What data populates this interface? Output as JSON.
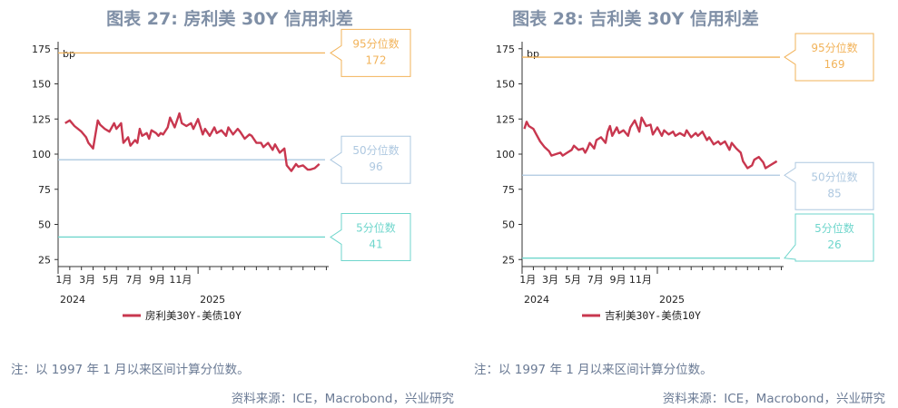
{
  "colors": {
    "series": "#c8374f",
    "p95": "#f2b35a",
    "p50": "#aec8e0",
    "p5": "#6fd6cc",
    "title": "#7f8fa6"
  },
  "chart_data": [
    {
      "type": "line",
      "title": "图表 27: 房利美 30Y 信用利差",
      "unit_label": "bp",
      "ylim": [
        20,
        180
      ],
      "yticks": [
        "175",
        "150",
        "125",
        "100",
        "75",
        "50",
        "25"
      ],
      "yticks_values": [
        175,
        150,
        125,
        100,
        75,
        50,
        25
      ],
      "xlim": [
        0,
        23.2
      ],
      "xticks": [
        {
          "month": 1,
          "label": "1月"
        },
        {
          "month": 3,
          "label": "3月"
        },
        {
          "month": 5,
          "label": "5月"
        },
        {
          "month": 7,
          "label": "7月"
        },
        {
          "month": 9,
          "label": "9月"
        },
        {
          "month": 11,
          "label": "11月"
        }
      ],
      "years": [
        "2024",
        "2025"
      ],
      "series": [
        {
          "name": "房利美30Y-美债10Y",
          "x": [
            0.6,
            1.0,
            1.4,
            2.0,
            2.4,
            2.6,
            2.8,
            3.0,
            3.4,
            3.6,
            4.0,
            4.4,
            4.6,
            4.8,
            5.0,
            5.4,
            5.6,
            6.0,
            6.2,
            6.6,
            6.8,
            7.0,
            7.2,
            7.6,
            7.8,
            8.0,
            8.4,
            8.6,
            8.8,
            9.0,
            9.4,
            9.6,
            10.0,
            10.4,
            10.6,
            11.0,
            11.4,
            11.6,
            12.0,
            12.4,
            12.6,
            13.0,
            13.4,
            13.6,
            14.0,
            14.4,
            14.6,
            15.0,
            15.4,
            15.6,
            16.0,
            16.4,
            16.6,
            17.0,
            17.4,
            17.6,
            18.0,
            18.4,
            18.6,
            19.0,
            19.4,
            19.6,
            20.0,
            20.4,
            20.6,
            21.0,
            21.4,
            21.6,
            22.0,
            22.4
          ],
          "values": [
            122,
            124,
            120,
            116,
            112,
            108,
            106,
            104,
            124,
            121,
            118,
            116,
            119,
            122,
            118,
            122,
            108,
            112,
            106,
            110,
            108,
            118,
            113,
            115,
            111,
            117,
            115,
            113,
            115,
            114,
            119,
            126,
            119,
            129,
            122,
            120,
            122,
            118,
            125,
            114,
            118,
            113,
            119,
            115,
            117,
            113,
            119,
            114,
            118,
            116,
            111,
            114,
            113,
            108,
            108,
            105,
            108,
            103,
            107,
            101,
            104,
            92,
            88,
            93,
            91,
            92,
            89,
            89,
            90,
            93
          ]
        }
      ],
      "percentiles": [
        {
          "label": "95分位数",
          "value": 172,
          "value_text": "172"
        },
        {
          "label": "50分位数",
          "value": 96,
          "value_text": "96"
        },
        {
          "label": "5分位数",
          "value": 41,
          "value_text": "41"
        }
      ],
      "note": "注：以 1997 年 1 月以来区间计算分位数。",
      "source": "资料来源：ICE，Macrobond，兴业研究"
    },
    {
      "type": "line",
      "title": "图表 28: 吉利美 30Y 信用利差",
      "unit_label": "bp",
      "ylim": [
        20,
        180
      ],
      "yticks": [
        "175",
        "150",
        "125",
        "100",
        "75",
        "50",
        "25"
      ],
      "yticks_values": [
        175,
        150,
        125,
        100,
        75,
        50,
        25
      ],
      "xlim": [
        0,
        23.2
      ],
      "xticks": [
        {
          "month": 1,
          "label": "1月"
        },
        {
          "month": 3,
          "label": "3月"
        },
        {
          "month": 5,
          "label": "5月"
        },
        {
          "month": 7,
          "label": "7月"
        },
        {
          "month": 9,
          "label": "9月"
        },
        {
          "month": 11,
          "label": "11月"
        }
      ],
      "years": [
        "2024",
        "2025"
      ],
      "series": [
        {
          "name": "吉利美30Y-美债10Y",
          "x": [
            0.2,
            0.4,
            0.6,
            1.0,
            1.2,
            1.6,
            2.0,
            2.4,
            2.6,
            3.0,
            3.4,
            3.6,
            4.0,
            4.4,
            4.6,
            5.0,
            5.4,
            5.6,
            5.8,
            6.0,
            6.4,
            6.6,
            7.0,
            7.4,
            7.6,
            7.8,
            8.0,
            8.4,
            8.6,
            9.0,
            9.4,
            9.6,
            10.0,
            10.4,
            10.6,
            11.0,
            11.4,
            11.6,
            12.0,
            12.4,
            12.6,
            13.0,
            13.4,
            13.6,
            14.0,
            14.4,
            14.6,
            15.0,
            15.4,
            15.6,
            16.0,
            16.4,
            16.6,
            17.0,
            17.4,
            17.6,
            18.0,
            18.4,
            18.6,
            18.8,
            19.0,
            19.4,
            19.6,
            20.0,
            20.4,
            20.6,
            21.0,
            21.4,
            21.6,
            22.0,
            22.4,
            22.6
          ],
          "values": [
            118,
            123,
            120,
            118,
            115,
            109,
            105,
            102,
            99,
            100,
            101,
            99,
            101,
            103,
            106,
            103,
            104,
            101,
            104,
            108,
            104,
            110,
            112,
            108,
            116,
            120,
            113,
            119,
            115,
            117,
            113,
            119,
            124,
            116,
            126,
            120,
            121,
            114,
            119,
            113,
            117,
            114,
            116,
            113,
            115,
            113,
            117,
            112,
            115,
            113,
            116,
            110,
            112,
            107,
            109,
            107,
            109,
            103,
            108,
            106,
            104,
            101,
            95,
            90,
            92,
            96,
            98,
            94,
            90,
            92,
            94,
            95
          ]
        }
      ],
      "percentiles": [
        {
          "label": "95分位数",
          "value": 169,
          "value_text": "169"
        },
        {
          "label": "50分位数",
          "value": 85,
          "value_text": "85"
        },
        {
          "label": "5分位数",
          "value": 26,
          "value_text": "26"
        }
      ],
      "note": "注：以 1997 年 1 月以来区间计算分位数。",
      "source": "资料来源：ICE，Macrobond，兴业研究"
    }
  ]
}
